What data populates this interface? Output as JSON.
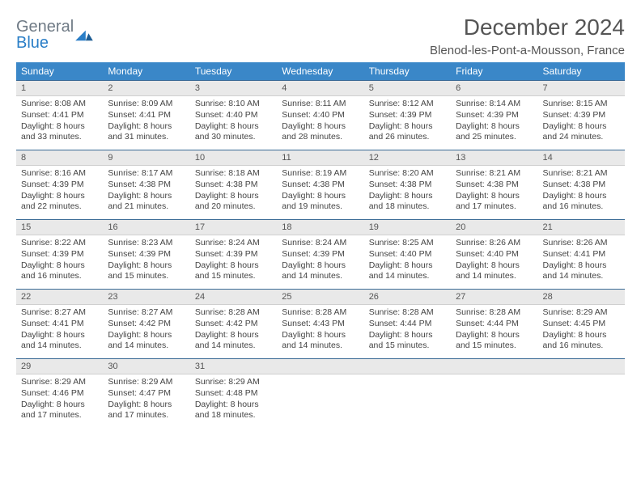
{
  "logo": {
    "line1": "General",
    "line2": "Blue"
  },
  "title": "December 2024",
  "location": "Blenod-les-Pont-a-Mousson, France",
  "weekdays": [
    "Sunday",
    "Monday",
    "Tuesday",
    "Wednesday",
    "Thursday",
    "Friday",
    "Saturday"
  ],
  "colors": {
    "header_bg": "#3a87c8",
    "daynum_bg": "#e9e9e9",
    "row_rule": "#3a6a95",
    "text": "#444"
  },
  "weeks": [
    [
      {
        "n": "1",
        "sunrise": "Sunrise: 8:08 AM",
        "sunset": "Sunset: 4:41 PM",
        "daylight": "Daylight: 8 hours and 33 minutes."
      },
      {
        "n": "2",
        "sunrise": "Sunrise: 8:09 AM",
        "sunset": "Sunset: 4:41 PM",
        "daylight": "Daylight: 8 hours and 31 minutes."
      },
      {
        "n": "3",
        "sunrise": "Sunrise: 8:10 AM",
        "sunset": "Sunset: 4:40 PM",
        "daylight": "Daylight: 8 hours and 30 minutes."
      },
      {
        "n": "4",
        "sunrise": "Sunrise: 8:11 AM",
        "sunset": "Sunset: 4:40 PM",
        "daylight": "Daylight: 8 hours and 28 minutes."
      },
      {
        "n": "5",
        "sunrise": "Sunrise: 8:12 AM",
        "sunset": "Sunset: 4:39 PM",
        "daylight": "Daylight: 8 hours and 26 minutes."
      },
      {
        "n": "6",
        "sunrise": "Sunrise: 8:14 AM",
        "sunset": "Sunset: 4:39 PM",
        "daylight": "Daylight: 8 hours and 25 minutes."
      },
      {
        "n": "7",
        "sunrise": "Sunrise: 8:15 AM",
        "sunset": "Sunset: 4:39 PM",
        "daylight": "Daylight: 8 hours and 24 minutes."
      }
    ],
    [
      {
        "n": "8",
        "sunrise": "Sunrise: 8:16 AM",
        "sunset": "Sunset: 4:39 PM",
        "daylight": "Daylight: 8 hours and 22 minutes."
      },
      {
        "n": "9",
        "sunrise": "Sunrise: 8:17 AM",
        "sunset": "Sunset: 4:38 PM",
        "daylight": "Daylight: 8 hours and 21 minutes."
      },
      {
        "n": "10",
        "sunrise": "Sunrise: 8:18 AM",
        "sunset": "Sunset: 4:38 PM",
        "daylight": "Daylight: 8 hours and 20 minutes."
      },
      {
        "n": "11",
        "sunrise": "Sunrise: 8:19 AM",
        "sunset": "Sunset: 4:38 PM",
        "daylight": "Daylight: 8 hours and 19 minutes."
      },
      {
        "n": "12",
        "sunrise": "Sunrise: 8:20 AM",
        "sunset": "Sunset: 4:38 PM",
        "daylight": "Daylight: 8 hours and 18 minutes."
      },
      {
        "n": "13",
        "sunrise": "Sunrise: 8:21 AM",
        "sunset": "Sunset: 4:38 PM",
        "daylight": "Daylight: 8 hours and 17 minutes."
      },
      {
        "n": "14",
        "sunrise": "Sunrise: 8:21 AM",
        "sunset": "Sunset: 4:38 PM",
        "daylight": "Daylight: 8 hours and 16 minutes."
      }
    ],
    [
      {
        "n": "15",
        "sunrise": "Sunrise: 8:22 AM",
        "sunset": "Sunset: 4:39 PM",
        "daylight": "Daylight: 8 hours and 16 minutes."
      },
      {
        "n": "16",
        "sunrise": "Sunrise: 8:23 AM",
        "sunset": "Sunset: 4:39 PM",
        "daylight": "Daylight: 8 hours and 15 minutes."
      },
      {
        "n": "17",
        "sunrise": "Sunrise: 8:24 AM",
        "sunset": "Sunset: 4:39 PM",
        "daylight": "Daylight: 8 hours and 15 minutes."
      },
      {
        "n": "18",
        "sunrise": "Sunrise: 8:24 AM",
        "sunset": "Sunset: 4:39 PM",
        "daylight": "Daylight: 8 hours and 14 minutes."
      },
      {
        "n": "19",
        "sunrise": "Sunrise: 8:25 AM",
        "sunset": "Sunset: 4:40 PM",
        "daylight": "Daylight: 8 hours and 14 minutes."
      },
      {
        "n": "20",
        "sunrise": "Sunrise: 8:26 AM",
        "sunset": "Sunset: 4:40 PM",
        "daylight": "Daylight: 8 hours and 14 minutes."
      },
      {
        "n": "21",
        "sunrise": "Sunrise: 8:26 AM",
        "sunset": "Sunset: 4:41 PM",
        "daylight": "Daylight: 8 hours and 14 minutes."
      }
    ],
    [
      {
        "n": "22",
        "sunrise": "Sunrise: 8:27 AM",
        "sunset": "Sunset: 4:41 PM",
        "daylight": "Daylight: 8 hours and 14 minutes."
      },
      {
        "n": "23",
        "sunrise": "Sunrise: 8:27 AM",
        "sunset": "Sunset: 4:42 PM",
        "daylight": "Daylight: 8 hours and 14 minutes."
      },
      {
        "n": "24",
        "sunrise": "Sunrise: 8:28 AM",
        "sunset": "Sunset: 4:42 PM",
        "daylight": "Daylight: 8 hours and 14 minutes."
      },
      {
        "n": "25",
        "sunrise": "Sunrise: 8:28 AM",
        "sunset": "Sunset: 4:43 PM",
        "daylight": "Daylight: 8 hours and 14 minutes."
      },
      {
        "n": "26",
        "sunrise": "Sunrise: 8:28 AM",
        "sunset": "Sunset: 4:44 PM",
        "daylight": "Daylight: 8 hours and 15 minutes."
      },
      {
        "n": "27",
        "sunrise": "Sunrise: 8:28 AM",
        "sunset": "Sunset: 4:44 PM",
        "daylight": "Daylight: 8 hours and 15 minutes."
      },
      {
        "n": "28",
        "sunrise": "Sunrise: 8:29 AM",
        "sunset": "Sunset: 4:45 PM",
        "daylight": "Daylight: 8 hours and 16 minutes."
      }
    ],
    [
      {
        "n": "29",
        "sunrise": "Sunrise: 8:29 AM",
        "sunset": "Sunset: 4:46 PM",
        "daylight": "Daylight: 8 hours and 17 minutes."
      },
      {
        "n": "30",
        "sunrise": "Sunrise: 8:29 AM",
        "sunset": "Sunset: 4:47 PM",
        "daylight": "Daylight: 8 hours and 17 minutes."
      },
      {
        "n": "31",
        "sunrise": "Sunrise: 8:29 AM",
        "sunset": "Sunset: 4:48 PM",
        "daylight": "Daylight: 8 hours and 18 minutes."
      },
      {
        "empty": true
      },
      {
        "empty": true
      },
      {
        "empty": true
      },
      {
        "empty": true
      }
    ]
  ]
}
